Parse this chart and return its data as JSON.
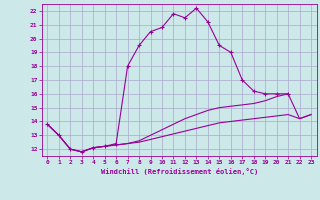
{
  "xlabel": "Windchill (Refroidissement éolien,°C)",
  "line_color": "#990099",
  "bg_color": "#cce8e8",
  "grid_color": "#aaaacc",
  "xlim": [
    -0.5,
    23.5
  ],
  "ylim": [
    11.5,
    22.5
  ],
  "xticks": [
    0,
    1,
    2,
    3,
    4,
    5,
    6,
    7,
    8,
    9,
    10,
    11,
    12,
    13,
    14,
    15,
    16,
    17,
    18,
    19,
    20,
    21,
    22,
    23
  ],
  "yticks": [
    12,
    13,
    14,
    15,
    16,
    17,
    18,
    19,
    20,
    21,
    22
  ],
  "series1_x": [
    0,
    1,
    2,
    3,
    4,
    5,
    6,
    7,
    8,
    9,
    10,
    11,
    12,
    13,
    14,
    15,
    16,
    17,
    18,
    19,
    20,
    21
  ],
  "series1_y": [
    13.8,
    13.0,
    12.0,
    11.8,
    12.1,
    12.2,
    12.4,
    18.0,
    19.5,
    20.5,
    20.8,
    21.8,
    21.5,
    22.2,
    21.2,
    19.5,
    19.0,
    17.0,
    16.2,
    16.0,
    16.0,
    16.0
  ],
  "series2_x": [
    0,
    1,
    2,
    3,
    4,
    5,
    6,
    7,
    8,
    9,
    10,
    11,
    12,
    13,
    14,
    15,
    16,
    17,
    18,
    19,
    20,
    21,
    22,
    23
  ],
  "series2_y": [
    13.8,
    13.0,
    12.0,
    11.8,
    12.1,
    12.2,
    12.3,
    12.4,
    12.6,
    13.0,
    13.4,
    13.8,
    14.2,
    14.5,
    14.8,
    15.0,
    15.1,
    15.2,
    15.3,
    15.5,
    15.8,
    16.0,
    14.2,
    14.5
  ],
  "series3_x": [
    0,
    1,
    2,
    3,
    4,
    5,
    6,
    7,
    8,
    9,
    10,
    11,
    12,
    13,
    14,
    15,
    16,
    17,
    18,
    19,
    20,
    21,
    22,
    23
  ],
  "series3_y": [
    13.8,
    13.0,
    12.0,
    11.8,
    12.1,
    12.2,
    12.3,
    12.4,
    12.5,
    12.7,
    12.9,
    13.1,
    13.3,
    13.5,
    13.7,
    13.9,
    14.0,
    14.1,
    14.2,
    14.3,
    14.4,
    14.5,
    14.2,
    14.5
  ]
}
